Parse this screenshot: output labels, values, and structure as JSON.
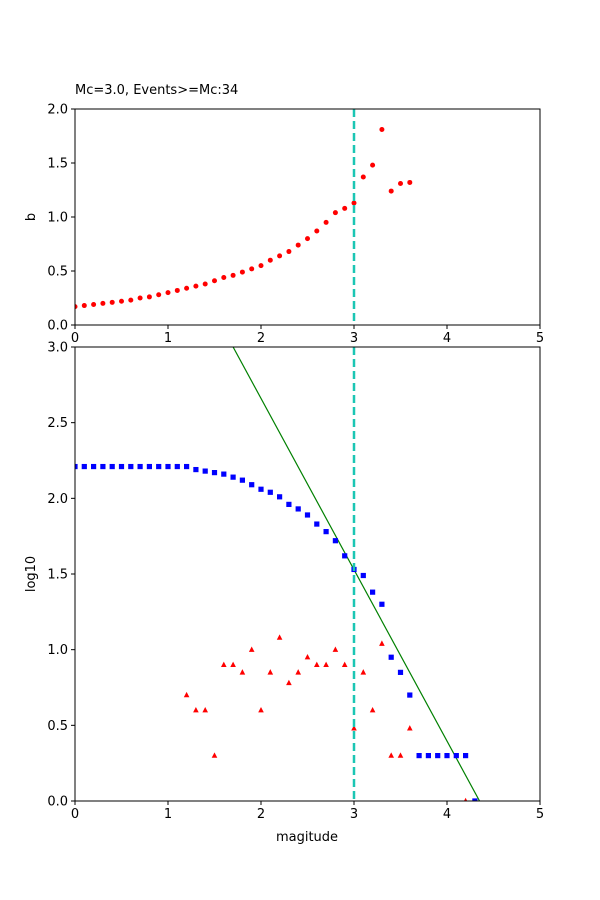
{
  "chart_data": [
    {
      "type": "scatter",
      "title": "Mc=3.0, Events>=Mc:34",
      "xlabel": "",
      "ylabel": "b",
      "xlim": [
        0,
        5
      ],
      "ylim": [
        0,
        2.0
      ],
      "xticks": [
        "0",
        "1",
        "2",
        "3",
        "4",
        "5"
      ],
      "yticks": [
        "0.0",
        "0.5",
        "1.0",
        "1.5",
        "2.0"
      ],
      "grid": false,
      "vline": {
        "x": 3.0,
        "color": "#1bc6b4",
        "style": "dashed"
      },
      "series": [
        {
          "marker": "circle",
          "color": "#ff0000",
          "x": [
            0.0,
            0.1,
            0.2,
            0.3,
            0.4,
            0.5,
            0.6,
            0.7,
            0.8,
            0.9,
            1.0,
            1.1,
            1.2,
            1.3,
            1.4,
            1.5,
            1.6,
            1.7,
            1.8,
            1.9,
            2.0,
            2.1,
            2.2,
            2.3,
            2.4,
            2.5,
            2.6,
            2.7,
            2.8,
            2.9,
            3.0,
            3.1,
            3.2,
            3.3,
            3.4,
            3.5,
            3.6
          ],
          "y": [
            0.17,
            0.18,
            0.19,
            0.2,
            0.21,
            0.22,
            0.23,
            0.25,
            0.26,
            0.28,
            0.3,
            0.32,
            0.34,
            0.36,
            0.38,
            0.41,
            0.44,
            0.46,
            0.49,
            0.52,
            0.55,
            0.6,
            0.64,
            0.68,
            0.74,
            0.8,
            0.87,
            0.95,
            1.04,
            1.08,
            1.13,
            1.37,
            1.48,
            1.81,
            1.24,
            1.31,
            1.32
          ]
        }
      ]
    },
    {
      "type": "scatter",
      "title": "",
      "xlabel": "magitude",
      "ylabel": "log10",
      "xlim": [
        0,
        5
      ],
      "ylim": [
        0,
        3.0
      ],
      "xticks": [
        "0",
        "1",
        "2",
        "3",
        "4",
        "5"
      ],
      "yticks": [
        "0.0",
        "0.5",
        "1.0",
        "1.5",
        "2.0",
        "2.5",
        "3.0"
      ],
      "grid": false,
      "vline": {
        "x": 3.0,
        "color": "#1bc6b4",
        "style": "dashed"
      },
      "fit_line": {
        "color": "#008000",
        "points": [
          [
            1.7,
            3.0
          ],
          [
            4.35,
            0.0
          ]
        ]
      },
      "series": [
        {
          "marker": "square",
          "color": "#0000ff",
          "x": [
            0.0,
            0.1,
            0.2,
            0.3,
            0.4,
            0.5,
            0.6,
            0.7,
            0.8,
            0.9,
            1.0,
            1.1,
            1.2,
            1.3,
            1.4,
            1.5,
            1.6,
            1.7,
            1.8,
            1.9,
            2.0,
            2.1,
            2.2,
            2.3,
            2.4,
            2.5,
            2.6,
            2.7,
            2.8,
            2.9,
            3.0,
            3.1,
            3.2,
            3.3,
            3.4,
            3.5,
            3.6,
            3.7,
            3.8,
            3.9,
            4.0,
            4.1,
            4.2,
            4.3
          ],
          "y": [
            2.21,
            2.21,
            2.21,
            2.21,
            2.21,
            2.21,
            2.21,
            2.21,
            2.21,
            2.21,
            2.21,
            2.21,
            2.21,
            2.19,
            2.18,
            2.17,
            2.16,
            2.14,
            2.12,
            2.09,
            2.06,
            2.04,
            2.01,
            1.96,
            1.93,
            1.89,
            1.83,
            1.78,
            1.72,
            1.62,
            1.53,
            1.49,
            1.38,
            1.3,
            0.95,
            0.85,
            0.7,
            0.3,
            0.3,
            0.3,
            0.3,
            0.3,
            0.3,
            0.0
          ]
        },
        {
          "marker": "triangle",
          "color": "#ff0000",
          "x": [
            1.2,
            1.3,
            1.4,
            1.5,
            1.6,
            1.7,
            1.8,
            1.9,
            2.0,
            2.1,
            2.2,
            2.3,
            2.4,
            2.5,
            2.6,
            2.7,
            2.8,
            2.9,
            3.0,
            3.1,
            3.2,
            3.3,
            3.4,
            3.5,
            3.6,
            4.2
          ],
          "y": [
            0.7,
            0.6,
            0.6,
            0.3,
            0.9,
            0.9,
            0.85,
            1.0,
            0.6,
            0.85,
            1.08,
            0.78,
            0.85,
            0.95,
            0.9,
            0.9,
            1.0,
            0.9,
            0.48,
            0.85,
            0.6,
            1.04,
            0.3,
            0.3,
            0.48,
            0.0
          ]
        }
      ]
    }
  ]
}
